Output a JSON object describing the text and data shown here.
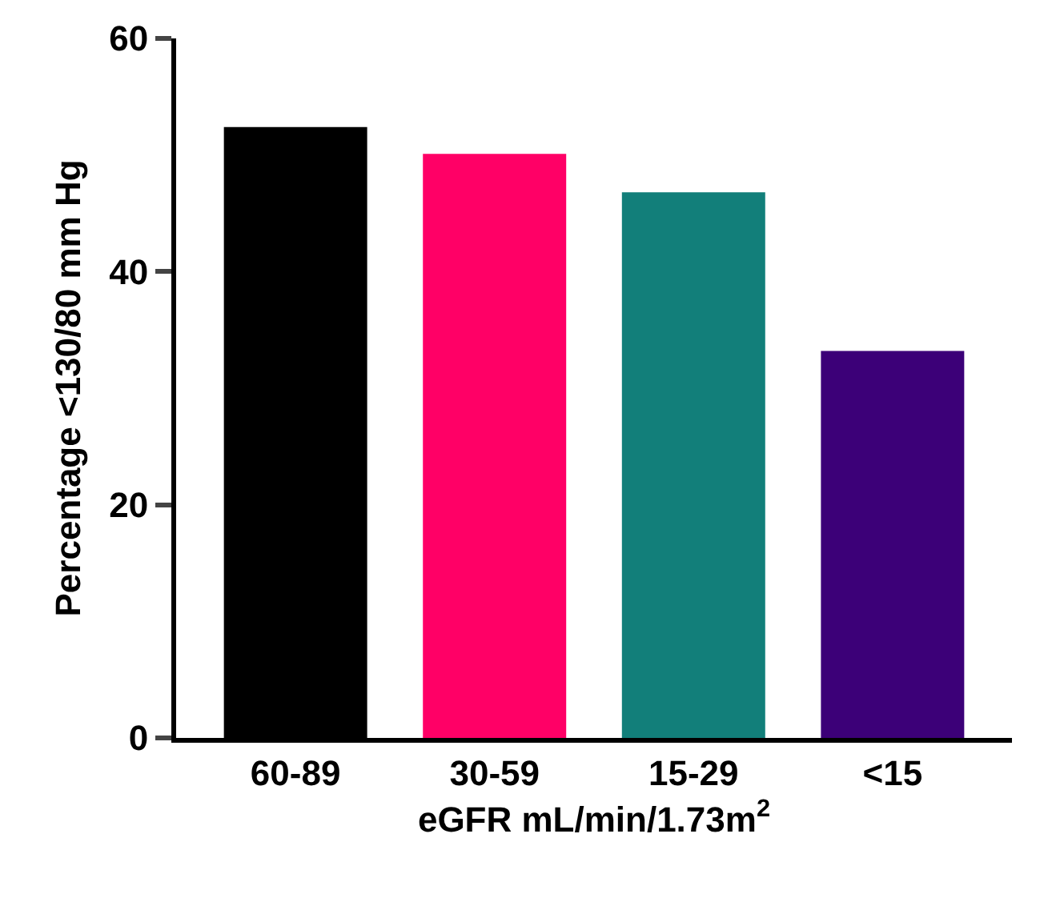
{
  "chart_data": {
    "type": "bar",
    "xlabel": "eGFR mL/min/1.73m$^{2}$",
    "ylabel": "Percentage <130/80 mm Hg",
    "categories": [
      "60-89",
      "30-59",
      "15-29",
      "<15"
    ],
    "values": [
      52.4,
      50.1,
      46.8,
      33.2
    ],
    "colors": [
      "#000000",
      "#ff0066",
      "#127f7a",
      "#3c0078"
    ],
    "ylim": [
      0,
      60
    ],
    "yticks": [
      0,
      20,
      40,
      60
    ]
  }
}
